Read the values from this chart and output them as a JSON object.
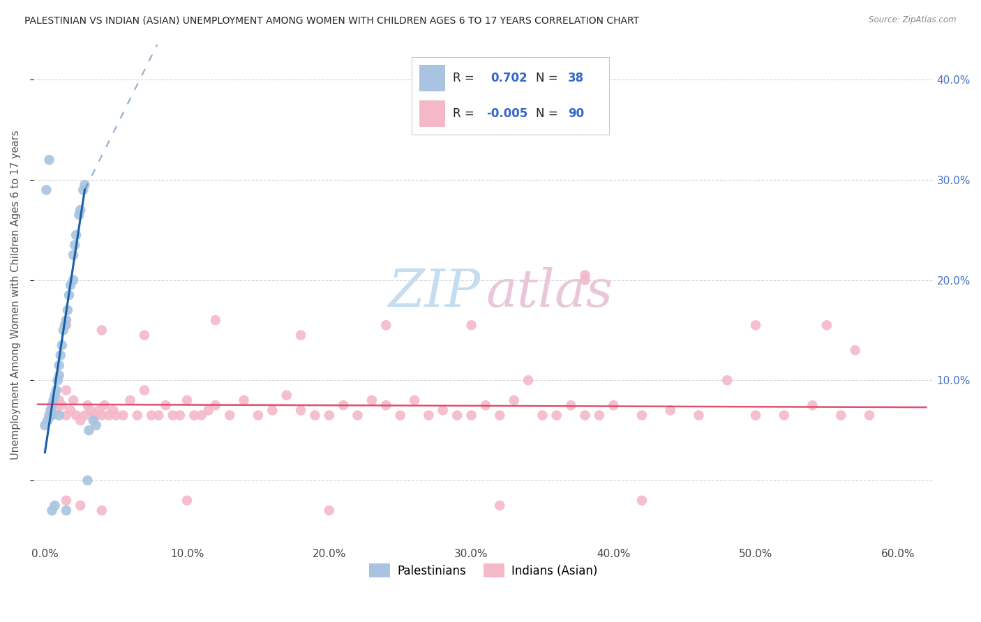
{
  "title": "PALESTINIAN VS INDIAN (ASIAN) UNEMPLOYMENT AMONG WOMEN WITH CHILDREN AGES 6 TO 17 YEARS CORRELATION CHART",
  "source": "Source: ZipAtlas.com",
  "ylabel": "Unemployment Among Women with Children Ages 6 to 17 years",
  "x_tick_values": [
    0.0,
    0.1,
    0.2,
    0.3,
    0.4,
    0.5,
    0.6
  ],
  "y_tick_values": [
    0.0,
    0.1,
    0.2,
    0.3,
    0.4
  ],
  "xlim": [
    -0.008,
    0.625
  ],
  "ylim": [
    -0.065,
    0.435
  ],
  "palestinian_R": "0.702",
  "palestinian_N": "38",
  "indian_R": "-0.005",
  "indian_N": "90",
  "palestinian_color": "#a8c4e0",
  "palestinian_line_color": "#1a5fa8",
  "indian_color": "#f4b8c8",
  "indian_line_color": "#e05070",
  "background_color": "#ffffff",
  "grid_color": "#cccccc",
  "right_axis_color": "#4472c4",
  "legend_text_color": "#3366cc",
  "title_color": "#222222",
  "source_color": "#888888",
  "label_color": "#555555",
  "pal_x": [
    0.0,
    0.002,
    0.003,
    0.004,
    0.005,
    0.006,
    0.007,
    0.008,
    0.009,
    0.01,
    0.01,
    0.011,
    0.012,
    0.013,
    0.014,
    0.015,
    0.016,
    0.017,
    0.018,
    0.02,
    0.021,
    0.022,
    0.024,
    0.025,
    0.027,
    0.028,
    0.03,
    0.031,
    0.034,
    0.036,
    0.001,
    0.003,
    0.005,
    0.007,
    0.015,
    0.02,
    0.005,
    0.01
  ],
  "pal_y": [
    0.055,
    0.06,
    0.065,
    0.07,
    0.075,
    0.08,
    0.085,
    0.09,
    0.1,
    0.105,
    0.115,
    0.125,
    0.135,
    0.15,
    0.155,
    0.16,
    0.17,
    0.185,
    0.195,
    0.225,
    0.235,
    0.245,
    0.265,
    0.27,
    0.29,
    0.295,
    0.0,
    0.05,
    0.06,
    0.055,
    0.29,
    0.32,
    -0.03,
    -0.025,
    -0.03,
    0.2,
    0.065,
    0.065
  ],
  "ind_x": [
    0.005,
    0.008,
    0.01,
    0.012,
    0.015,
    0.015,
    0.018,
    0.02,
    0.022,
    0.025,
    0.028,
    0.03,
    0.032,
    0.035,
    0.038,
    0.04,
    0.042,
    0.045,
    0.048,
    0.05,
    0.055,
    0.06,
    0.065,
    0.07,
    0.075,
    0.08,
    0.085,
    0.09,
    0.095,
    0.1,
    0.105,
    0.11,
    0.115,
    0.12,
    0.13,
    0.14,
    0.15,
    0.16,
    0.17,
    0.18,
    0.19,
    0.2,
    0.21,
    0.22,
    0.23,
    0.24,
    0.25,
    0.26,
    0.27,
    0.28,
    0.29,
    0.3,
    0.31,
    0.32,
    0.33,
    0.34,
    0.35,
    0.36,
    0.37,
    0.38,
    0.39,
    0.4,
    0.42,
    0.44,
    0.46,
    0.48,
    0.5,
    0.52,
    0.54,
    0.56,
    0.58,
    0.015,
    0.04,
    0.07,
    0.12,
    0.18,
    0.24,
    0.3,
    0.38,
    0.5,
    0.015,
    0.025,
    0.04,
    0.1,
    0.2,
    0.32,
    0.42,
    0.55,
    0.57,
    0.38
  ],
  "ind_y": [
    0.065,
    0.07,
    0.08,
    0.075,
    0.09,
    0.065,
    0.07,
    0.08,
    0.065,
    0.06,
    0.065,
    0.075,
    0.07,
    0.065,
    0.07,
    0.065,
    0.075,
    0.065,
    0.07,
    0.065,
    0.065,
    0.08,
    0.065,
    0.09,
    0.065,
    0.065,
    0.075,
    0.065,
    0.065,
    0.08,
    0.065,
    0.065,
    0.07,
    0.075,
    0.065,
    0.08,
    0.065,
    0.07,
    0.085,
    0.07,
    0.065,
    0.065,
    0.075,
    0.065,
    0.08,
    0.075,
    0.065,
    0.08,
    0.065,
    0.07,
    0.065,
    0.065,
    0.075,
    0.065,
    0.08,
    0.1,
    0.065,
    0.065,
    0.075,
    0.065,
    0.065,
    0.075,
    0.065,
    0.07,
    0.065,
    0.1,
    0.065,
    0.065,
    0.075,
    0.065,
    0.065,
    0.155,
    0.15,
    0.145,
    0.16,
    0.145,
    0.155,
    0.155,
    0.205,
    0.155,
    -0.02,
    -0.025,
    -0.03,
    -0.02,
    -0.03,
    -0.025,
    -0.02,
    0.155,
    0.13,
    0.2
  ]
}
